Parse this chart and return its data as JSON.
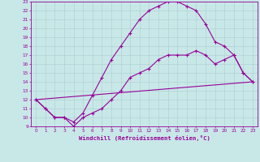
{
  "xlabel": "Windchill (Refroidissement éolien,°C)",
  "xlim": [
    -0.5,
    23.5
  ],
  "ylim": [
    9,
    23
  ],
  "xticks": [
    0,
    1,
    2,
    3,
    4,
    5,
    6,
    7,
    8,
    9,
    10,
    11,
    12,
    13,
    14,
    15,
    16,
    17,
    18,
    19,
    20,
    21,
    22,
    23
  ],
  "yticks": [
    9,
    10,
    11,
    12,
    13,
    14,
    15,
    16,
    17,
    18,
    19,
    20,
    21,
    22,
    23
  ],
  "background_color": "#c8e8e8",
  "grid_color": "#b0d0d4",
  "line_color": "#990099",
  "line1_x": [
    0,
    1,
    2,
    3,
    4,
    5,
    6,
    7,
    8,
    9,
    10,
    11,
    12,
    13,
    14,
    15,
    16,
    17,
    18,
    19,
    20,
    21,
    22,
    23
  ],
  "line1_y": [
    12,
    11,
    10,
    10,
    9,
    10,
    10.5,
    11,
    12,
    13,
    14.5,
    15,
    15.5,
    16.5,
    17,
    17,
    17,
    17.5,
    17,
    16,
    16.5,
    17,
    15,
    14
  ],
  "line2_x": [
    0,
    1,
    2,
    3,
    4,
    5,
    6,
    7,
    8,
    9,
    10,
    11,
    12,
    13,
    14,
    15,
    16,
    17,
    18,
    19,
    20,
    21,
    22,
    23
  ],
  "line2_y": [
    12,
    11,
    10,
    10,
    9.5,
    10.5,
    12.5,
    14.5,
    16.5,
    18,
    19.5,
    21,
    22,
    22.5,
    23,
    23,
    22.5,
    22,
    20.5,
    18.5,
    18,
    17,
    15,
    14
  ],
  "line3_x": [
    0,
    23
  ],
  "line3_y": [
    12,
    14
  ]
}
